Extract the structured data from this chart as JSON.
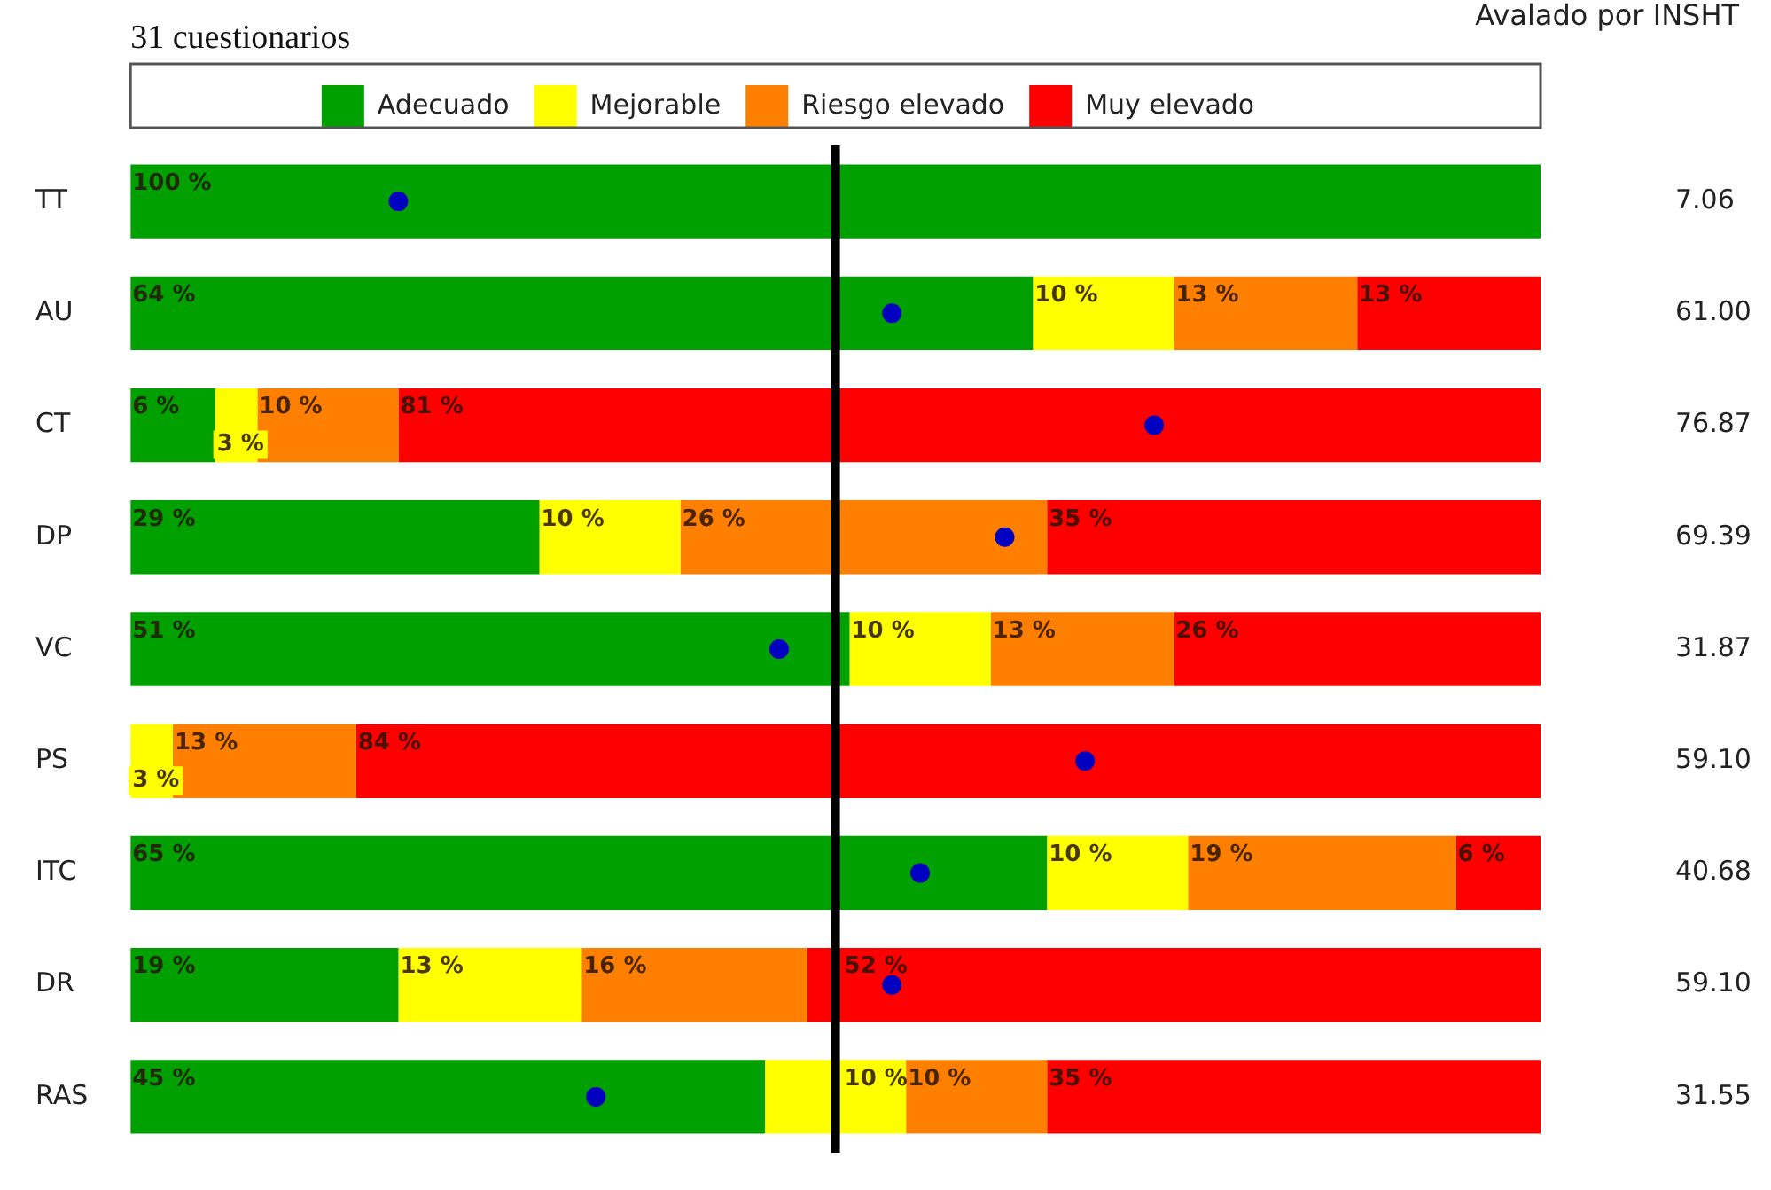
{
  "chart_data": {
    "type": "bar",
    "orientation": "horizontal",
    "stacked": true,
    "title": "31 cuestionarios",
    "categories": [
      "TT",
      "AU",
      "CT",
      "DP",
      "VC",
      "PS",
      "ITC",
      "DR",
      "RAS"
    ],
    "xlim": [
      0,
      100
    ],
    "grid": false,
    "tick_labels": "y",
    "legend": "top",
    "series": [
      {
        "name": "Adecuado",
        "color": "#00a000",
        "values": [
          100,
          64,
          6,
          29,
          51,
          0,
          65,
          19,
          45
        ],
        "value_labels": [
          "100 %",
          "64 %",
          "6 %",
          "29 %",
          "51 %",
          null,
          "65 %",
          "19 %",
          "45 %"
        ]
      },
      {
        "name": "Mejorable",
        "color": "#ffff00",
        "values": [
          0,
          10,
          3,
          10,
          10,
          3,
          10,
          13,
          10
        ],
        "value_labels": [
          null,
          "10 %",
          "3 %",
          "10 %",
          "10 %",
          "3 %",
          "10 %",
          "13 %",
          "10 %"
        ]
      },
      {
        "name": "Riesgo elevado",
        "color": "#ff8000",
        "values": [
          0,
          13,
          10,
          26,
          13,
          13,
          19,
          16,
          10
        ],
        "value_labels": [
          null,
          "13 %",
          "10 %",
          "26 %",
          "13 %",
          "13 %",
          "19 %",
          "16 %",
          "10 %"
        ]
      },
      {
        "name": "Muy elevado",
        "color": "#ff0000",
        "values": [
          0,
          13,
          81,
          35,
          26,
          84,
          6,
          52,
          35
        ],
        "value_labels": [
          null,
          "13 %",
          "81 %",
          "35 %",
          "26 %",
          "84 %",
          "6 %",
          "52 %",
          "35 %"
        ]
      },
      {
        "type": "scatter",
        "color": "#0000c0",
        "marker": "circle",
        "values": [
          19,
          54,
          72.6,
          62,
          46,
          67.7,
          56,
          54,
          33
        ]
      }
    ],
    "ref_lines": [
      {
        "axis": "x",
        "value": 50,
        "color": "#000000"
      }
    ],
    "annotations": [
      "Avalado por INSHT",
      "7.06",
      "61.00",
      "76.87",
      "69.39",
      "31.87",
      "59.10",
      "40.68",
      "59.10",
      "31.55"
    ]
  }
}
